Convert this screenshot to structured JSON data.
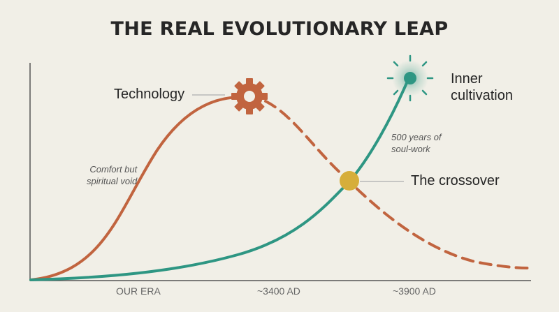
{
  "title": "THE REAL EVOLUTIONARY LEAP",
  "colors": {
    "background": "#f1efe7",
    "technology": "#c1643f",
    "inner": "#2e9683",
    "crossover": "#d6ae3b",
    "axis": "#555555",
    "leader": "#b8b8b8"
  },
  "icons": {
    "technology": "gear-icon",
    "inner": "sun-icon",
    "crossover": "dot-icon"
  },
  "labels": {
    "technology": "Technology",
    "inner_line1": "Inner",
    "inner_line2": "cultivation",
    "crossover": "The crossover"
  },
  "annotations": {
    "comfort_line1": "Comfort but",
    "comfort_line2": "spiritual void",
    "soul_line1": "500 years of",
    "soul_line2": "soul-work"
  },
  "axis": {
    "ticks": [
      "OUR ERA",
      "~3400 AD",
      "~3900 AD"
    ]
  }
}
